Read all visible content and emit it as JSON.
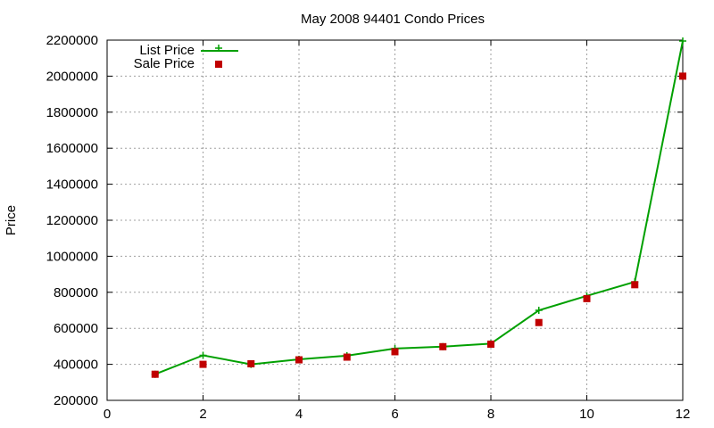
{
  "chart_data": {
    "type": "line",
    "title": "May 2008 94401 Condo Prices",
    "xlabel": "",
    "ylabel": "Price",
    "xlim": [
      0,
      12
    ],
    "ylim": [
      200000,
      2200000
    ],
    "xticks": [
      "0",
      "2",
      "4",
      "6",
      "8",
      "10",
      "12"
    ],
    "yticks": [
      "200000",
      "400000",
      "600000",
      "800000",
      "1000000",
      "1200000",
      "1400000",
      "1600000",
      "1800000",
      "2000000",
      "2200000"
    ],
    "grid": true,
    "legend_position": "top-left",
    "series": [
      {
        "name": "List Price",
        "style": "line-with-plus-markers",
        "color": "#00a000",
        "x": [
          1,
          2,
          3,
          4,
          5,
          6,
          7,
          8,
          9,
          10,
          11,
          12
        ],
        "y": [
          345000,
          450000,
          400000,
          428000,
          448000,
          488000,
          498000,
          515000,
          700000,
          780000,
          858000,
          2195000
        ]
      },
      {
        "name": "Sale Price",
        "style": "square-markers",
        "color": "#c00000",
        "x": [
          1,
          2,
          3,
          4,
          5,
          6,
          7,
          8,
          9,
          10,
          11,
          12
        ],
        "y": [
          345000,
          400000,
          403000,
          425000,
          440000,
          470000,
          498000,
          512000,
          632000,
          765000,
          842000,
          2000000
        ]
      }
    ]
  }
}
